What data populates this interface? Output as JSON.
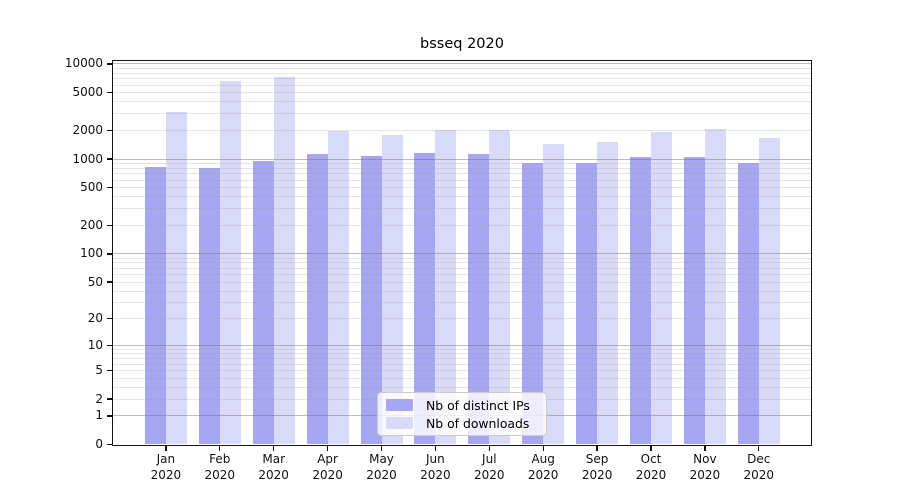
{
  "chart_data": {
    "type": "bar",
    "title": "bsseq 2020",
    "categories": [
      "Jan 2020",
      "Feb 2020",
      "Mar 2020",
      "Apr 2020",
      "May 2020",
      "Jun 2020",
      "Jul 2020",
      "Aug 2020",
      "Sep 2020",
      "Oct 2020",
      "Nov 2020",
      "Dec 2020"
    ],
    "series": [
      {
        "name": "Nb of distinct IPs",
        "color": "#a6a6f2",
        "values": [
          820,
          815,
          950,
          1120,
          1080,
          1170,
          1130,
          900,
          910,
          1060,
          1045,
          920
        ]
      },
      {
        "name": "Nb of downloads",
        "color": "#d9d9f8",
        "values": [
          3150,
          6560,
          7230,
          1970,
          1790,
          2020,
          2000,
          1440,
          1510,
          1940,
          2080,
          1650
        ]
      }
    ],
    "y_axis": {
      "scale": "log10(1+x)",
      "ticks": [
        0,
        1,
        2,
        5,
        10,
        20,
        50,
        100,
        200,
        500,
        1000,
        2000,
        5000,
        10000
      ],
      "lim": [
        0,
        10000
      ]
    },
    "x_axis": {
      "label_lines_per_tick": 2
    },
    "grid": {
      "horizontal": true,
      "minor": true,
      "major_at_powers_of_ten": true
    },
    "legend": {
      "position": "inside-bottom-center"
    },
    "colors": {
      "major_grid": "#b5b5b5",
      "minor_grid": "#e4e4e4",
      "axis": "#151515",
      "background": "#ffffff"
    }
  }
}
